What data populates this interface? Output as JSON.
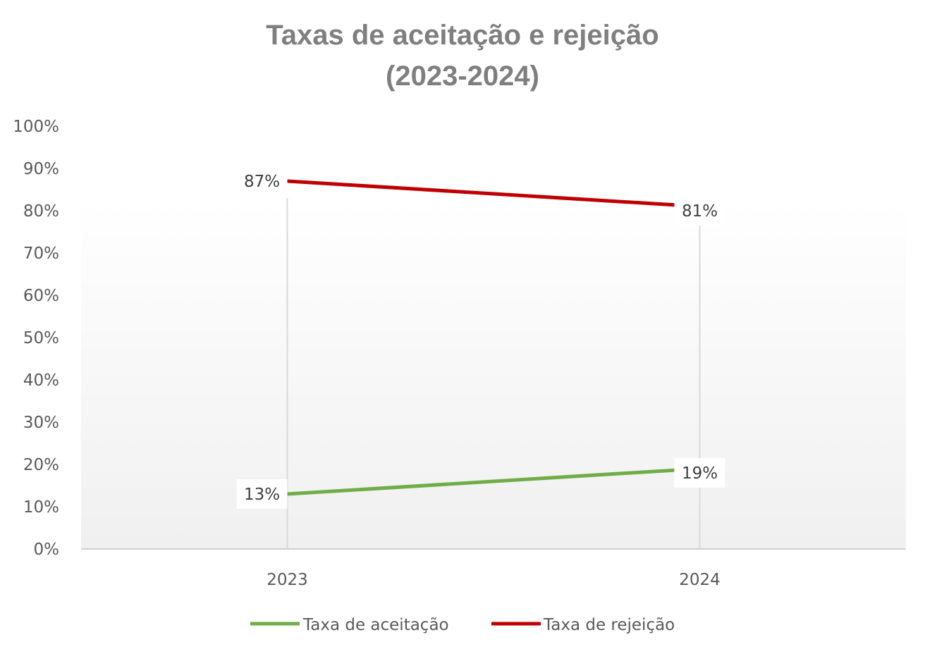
{
  "chart_data": {
    "type": "line",
    "title": "Taxas de aceitação e rejeição",
    "subtitle": "(2023-2024)",
    "categories": [
      "2023",
      "2024"
    ],
    "series": [
      {
        "name": "Taxa de aceitação",
        "values": [
          13,
          19
        ],
        "labels": [
          "13%",
          "19%"
        ],
        "color": "#70ad47"
      },
      {
        "name": "Taxa de rejeição",
        "values": [
          87,
          81
        ],
        "labels": [
          "87%",
          "81%"
        ],
        "color": "#c00000"
      }
    ],
    "ylim": [
      0,
      100
    ],
    "yticks": [
      0,
      10,
      20,
      30,
      40,
      50,
      60,
      70,
      80,
      90,
      100
    ],
    "ytick_labels": [
      "0%",
      "10%",
      "20%",
      "30%",
      "40%",
      "50%",
      "60%",
      "70%",
      "80%",
      "90%",
      "100%"
    ],
    "xlabel": "",
    "ylabel": "",
    "grid": "vertical",
    "legend_position": "bottom"
  }
}
